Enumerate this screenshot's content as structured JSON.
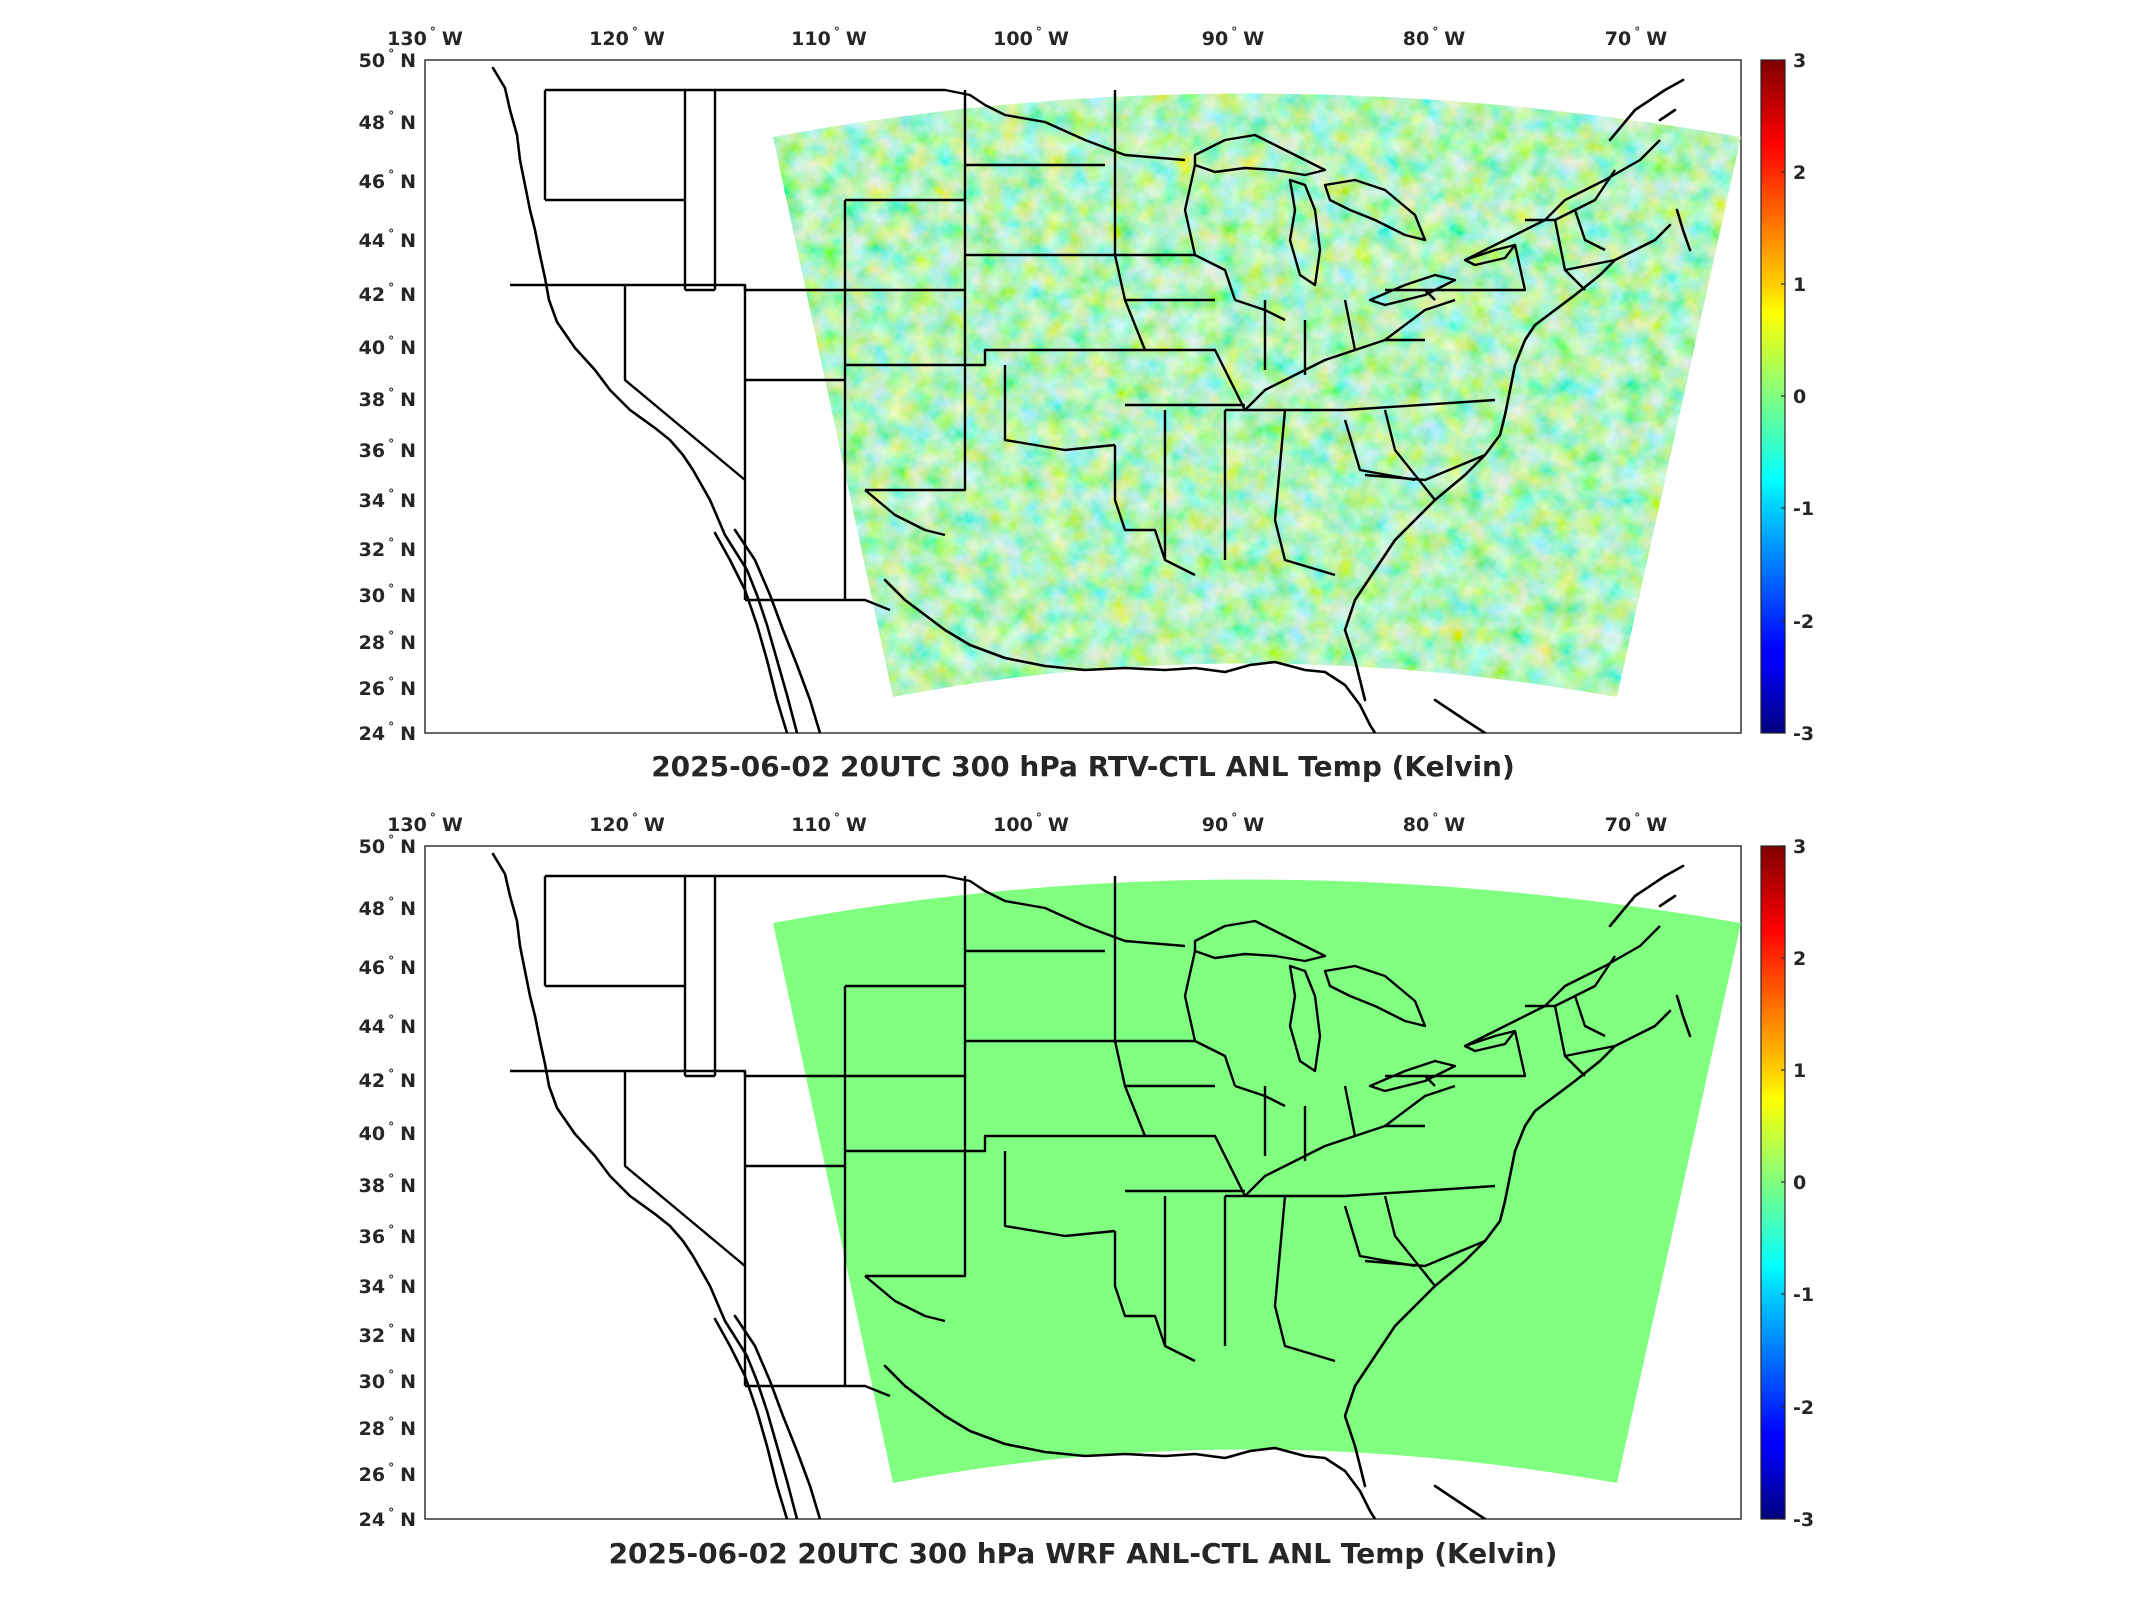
{
  "figure": {
    "panels": [
      {
        "title": "2025-06-02 20UTC 300 hPa RTV-CTL ANL Temp (Kelvin)",
        "field": "mottled"
      },
      {
        "title": "2025-06-02 20UTC 300 hPa WRF ANL-CTL ANL Temp (Kelvin)",
        "field": "uniform"
      }
    ],
    "lon_labels": [
      "130",
      "120",
      "110",
      "100",
      "90",
      "80",
      "70"
    ],
    "lon_suffix": "W",
    "lat_labels": [
      "50",
      "48",
      "46",
      "44",
      "42",
      "40",
      "38",
      "36",
      "34",
      "32",
      "30",
      "28",
      "26",
      "24"
    ],
    "lat_suffix": "N",
    "degree_mark": "°",
    "colorbar": {
      "ticks": [
        "3",
        "2",
        "1",
        "0",
        "-1",
        "-2",
        "-3"
      ],
      "range": [
        -3,
        3
      ],
      "colormap": "jet"
    },
    "colors": {
      "uniform_field": "#80ff80",
      "mottled_field_base": "#8fef75"
    }
  }
}
